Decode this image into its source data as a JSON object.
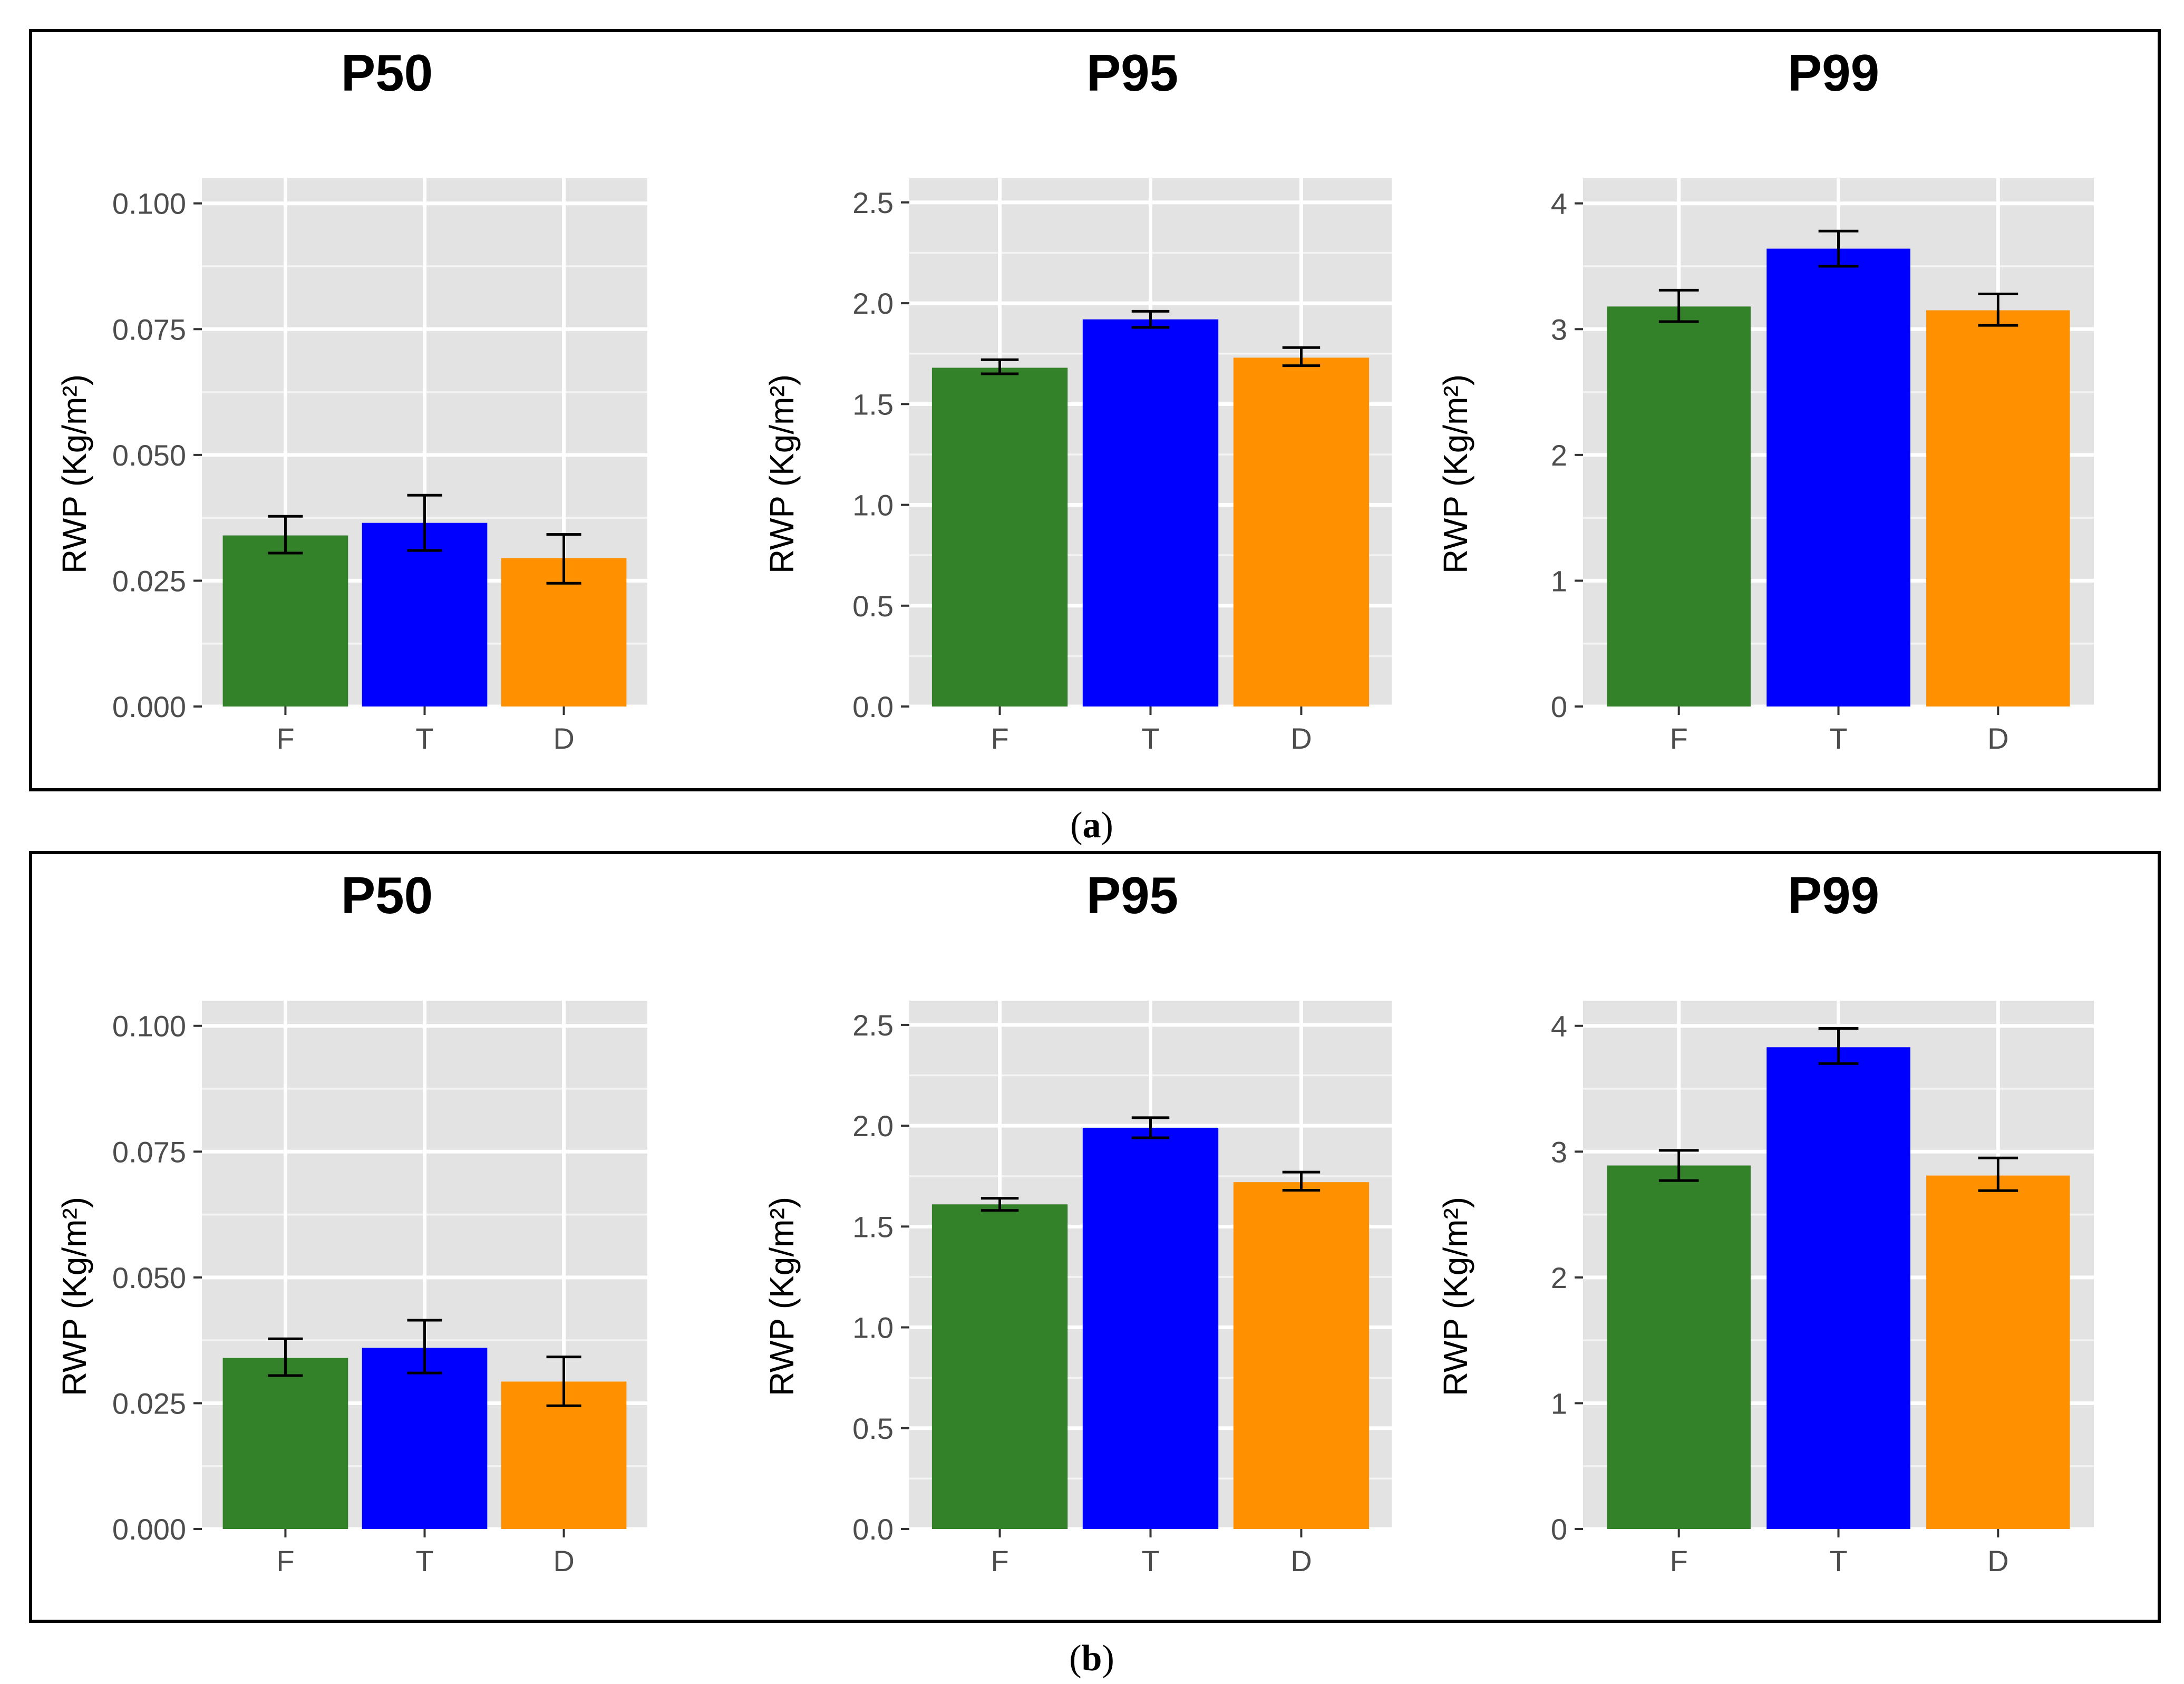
{
  "figures": [
    {
      "caption": "(a)",
      "caption_letter": "a"
    },
    {
      "caption": "(b)",
      "caption_letter": "b"
    }
  ],
  "colors": {
    "F": "#338129",
    "T": "#0000ff",
    "D": "#ff9100",
    "panel_bg": "#e3e3e3",
    "grid": "#ffffff"
  },
  "chart_data": [
    {
      "figure": "a",
      "type": "bar",
      "title": "P50",
      "categories": [
        "F",
        "T",
        "D"
      ],
      "values": [
        0.034,
        0.0365,
        0.0295
      ],
      "error_low": [
        0.0305,
        0.031,
        0.0245
      ],
      "error_high": [
        0.0378,
        0.042,
        0.0342
      ],
      "xlabel": "",
      "ylabel": "RWP (Kg/m²)",
      "ylim": [
        0,
        0.105
      ],
      "yticks": [
        0,
        0.025,
        0.05,
        0.075,
        0.1
      ],
      "ytick_labels": [
        "0.000",
        "0.025",
        "0.050",
        "0.075",
        "0.100"
      ],
      "grid": true
    },
    {
      "figure": "a",
      "type": "bar",
      "title": "P95",
      "categories": [
        "F",
        "T",
        "D"
      ],
      "values": [
        1.68,
        1.92,
        1.73
      ],
      "error_low": [
        1.65,
        1.88,
        1.69
      ],
      "error_high": [
        1.72,
        1.96,
        1.78
      ],
      "xlabel": "",
      "ylabel": "RWP (Kg/m²)",
      "ylim": [
        0,
        2.62
      ],
      "yticks": [
        0,
        0.5,
        1,
        1.5,
        2,
        2.5
      ],
      "ytick_labels": [
        "0.0",
        "0.5",
        "1.0",
        "1.5",
        "2.0",
        "2.5"
      ],
      "grid": true
    },
    {
      "figure": "a",
      "type": "bar",
      "title": "P99",
      "categories": [
        "F",
        "T",
        "D"
      ],
      "values": [
        3.18,
        3.64,
        3.15
      ],
      "error_low": [
        3.06,
        3.5,
        3.03
      ],
      "error_high": [
        3.31,
        3.78,
        3.28
      ],
      "xlabel": "",
      "ylabel": "RWP (Kg/m²)",
      "ylim": [
        0,
        4.2
      ],
      "yticks": [
        0,
        1,
        2,
        3,
        4
      ],
      "ytick_labels": [
        "0",
        "1",
        "2",
        "3",
        "4"
      ],
      "grid": true
    },
    {
      "figure": "b",
      "type": "bar",
      "title": "P50",
      "categories": [
        "F",
        "T",
        "D"
      ],
      "values": [
        0.034,
        0.036,
        0.0293
      ],
      "error_low": [
        0.0305,
        0.031,
        0.0245
      ],
      "error_high": [
        0.0378,
        0.0415,
        0.0342
      ],
      "xlabel": "",
      "ylabel": "RWP (Kg/m²)",
      "ylim": [
        0,
        0.105
      ],
      "yticks": [
        0,
        0.025,
        0.05,
        0.075,
        0.1
      ],
      "ytick_labels": [
        "0.000",
        "0.025",
        "0.050",
        "0.075",
        "0.100"
      ],
      "grid": true
    },
    {
      "figure": "b",
      "type": "bar",
      "title": "P95",
      "categories": [
        "F",
        "T",
        "D"
      ],
      "values": [
        1.61,
        1.99,
        1.72
      ],
      "error_low": [
        1.58,
        1.94,
        1.68
      ],
      "error_high": [
        1.64,
        2.04,
        1.77
      ],
      "xlabel": "",
      "ylabel": "RWP (Kg/m²)",
      "ylim": [
        0,
        2.62
      ],
      "yticks": [
        0,
        0.5,
        1,
        1.5,
        2,
        2.5
      ],
      "ytick_labels": [
        "0.0",
        "0.5",
        "1.0",
        "1.5",
        "2.0",
        "2.5"
      ],
      "grid": true
    },
    {
      "figure": "b",
      "type": "bar",
      "title": "P99",
      "categories": [
        "F",
        "T",
        "D"
      ],
      "values": [
        2.89,
        3.83,
        2.81
      ],
      "error_low": [
        2.77,
        3.7,
        2.69
      ],
      "error_high": [
        3.01,
        3.98,
        2.95
      ],
      "xlabel": "",
      "ylabel": "RWP (Kg/m²)",
      "ylim": [
        0,
        4.2
      ],
      "yticks": [
        0,
        1,
        2,
        3,
        4
      ],
      "ytick_labels": [
        "0",
        "1",
        "2",
        "3",
        "4"
      ],
      "grid": true
    }
  ]
}
